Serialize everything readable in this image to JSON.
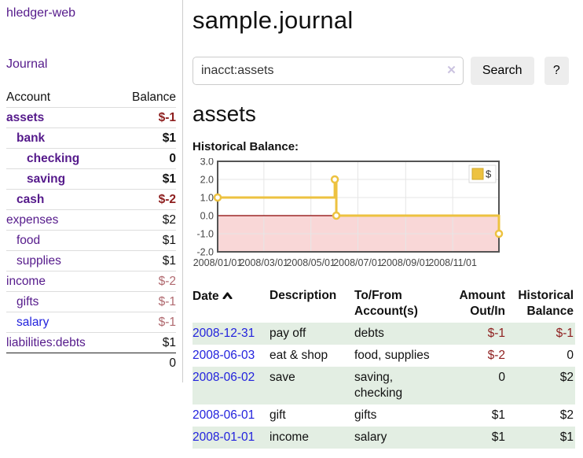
{
  "colors": {
    "purple_link": "#551a8b",
    "blue_link": "#2222dd",
    "negative_strong": "#8e1f1f",
    "negative_muted": "#b0696f",
    "row_stripe": "#e3eee3",
    "divider": "#cccccc",
    "button_bg": "#ededed"
  },
  "sidebar": {
    "brand": "hledger-web",
    "nav": {
      "journal_label": "Journal"
    },
    "table": {
      "headers": {
        "account": "Account",
        "balance": "Balance"
      },
      "accounts": [
        {
          "name": "assets",
          "level": 0,
          "bold": true,
          "link_tone": "purple",
          "balance": "$-1",
          "balance_tone": "negative"
        },
        {
          "name": "bank",
          "level": 1,
          "bold": true,
          "link_tone": "purple",
          "balance": "$1",
          "balance_tone": "normal"
        },
        {
          "name": "checking",
          "level": 2,
          "bold": true,
          "link_tone": "purple",
          "balance": "0",
          "balance_tone": "normal"
        },
        {
          "name": "saving",
          "level": 2,
          "bold": true,
          "link_tone": "purple",
          "balance": "$1",
          "balance_tone": "normal"
        },
        {
          "name": "cash",
          "level": 1,
          "bold": true,
          "link_tone": "purple",
          "balance": "$-2",
          "balance_tone": "negative"
        },
        {
          "name": "expenses",
          "level": 0,
          "bold": false,
          "link_tone": "purple",
          "balance": "$2",
          "balance_tone": "normal"
        },
        {
          "name": "food",
          "level": 1,
          "bold": false,
          "link_tone": "purple",
          "balance": "$1",
          "balance_tone": "normal"
        },
        {
          "name": "supplies",
          "level": 1,
          "bold": false,
          "link_tone": "purple",
          "balance": "$1",
          "balance_tone": "normal"
        },
        {
          "name": "income",
          "level": 0,
          "bold": false,
          "link_tone": "purple",
          "balance": "$-2",
          "balance_tone": "negative-muted"
        },
        {
          "name": "gifts",
          "level": 1,
          "bold": false,
          "link_tone": "purple",
          "balance": "$-1",
          "balance_tone": "negative-muted"
        },
        {
          "name": "salary",
          "level": 1,
          "bold": false,
          "link_tone": "blue",
          "balance": "$-1",
          "balance_tone": "negative-muted"
        },
        {
          "name": "liabilities:debts",
          "level": 0,
          "bold": false,
          "link_tone": "purple",
          "balance": "$1",
          "balance_tone": "normal"
        }
      ],
      "total": "0"
    }
  },
  "main": {
    "title": "sample.journal",
    "search": {
      "value": "inacct:assets",
      "clear_icon": "✕",
      "search_label": "Search",
      "help_label": "?"
    },
    "account_heading": "assets",
    "chart_label": "Historical Balance:"
  },
  "chart_data": {
    "type": "line",
    "title": "Historical Balance",
    "step": true,
    "legend_position": "top-right",
    "grid": true,
    "y_ticks": [
      "3.0",
      "2.0",
      "1.0",
      "0.0",
      "-1.0",
      "-2.0"
    ],
    "y_range": [
      -2,
      3
    ],
    "x_ticks": [
      {
        "label": "2008/01/01",
        "day": 0
      },
      {
        "label": "2008/03/01",
        "day": 60
      },
      {
        "label": "2008/05/01",
        "day": 121
      },
      {
        "label": "2008/07/01",
        "day": 182
      },
      {
        "label": "2008/09/01",
        "day": 244
      },
      {
        "label": "2008/11/01",
        "day": 305
      }
    ],
    "x_range_days": [
      0,
      365
    ],
    "series": [
      {
        "name": "$",
        "color": "#edc240",
        "points": [
          {
            "date": "2008-01-01",
            "day": 0,
            "value": 1
          },
          {
            "date": "2008-06-01",
            "day": 152,
            "value": 2
          },
          {
            "date": "2008-06-03",
            "day": 154,
            "value": 0
          },
          {
            "date": "2008-12-31",
            "day": 365,
            "value": -1
          }
        ]
      }
    ],
    "negative_region_color": "#f9d7d7",
    "zero_line_color": "#8b0000",
    "grid_color": "#e6e6e6",
    "border_color": "#545454",
    "legend_box_border": "#d9d9d9",
    "legend_swatch_border": "#cfa82c"
  },
  "register": {
    "headers": {
      "date": "Date",
      "description": "Description",
      "accounts": "To/From\nAccount(s)",
      "amount": "Amount\nOut/In",
      "balance": "Historical\nBalance"
    },
    "sort": {
      "column": "date",
      "direction": "ascending"
    },
    "rows": [
      {
        "date": "2008-12-31",
        "description": "pay off",
        "accounts": "debts",
        "amount": "$-1",
        "amount_tone": "negative",
        "balance": "$-1",
        "balance_tone": "negative"
      },
      {
        "date": "2008-06-03",
        "description": "eat & shop",
        "accounts": "food, supplies",
        "amount": "$-2",
        "amount_tone": "negative",
        "balance": "0",
        "balance_tone": "normal"
      },
      {
        "date": "2008-06-02",
        "description": "save",
        "accounts": "saving, checking",
        "amount": "0",
        "amount_tone": "normal",
        "balance": "$2",
        "balance_tone": "normal"
      },
      {
        "date": "2008-06-01",
        "description": "gift",
        "accounts": "gifts",
        "amount": "$1",
        "amount_tone": "normal",
        "balance": "$2",
        "balance_tone": "normal"
      },
      {
        "date": "2008-01-01",
        "description": "income",
        "accounts": "salary",
        "amount": "$1",
        "amount_tone": "normal",
        "balance": "$1",
        "balance_tone": "normal"
      }
    ]
  }
}
